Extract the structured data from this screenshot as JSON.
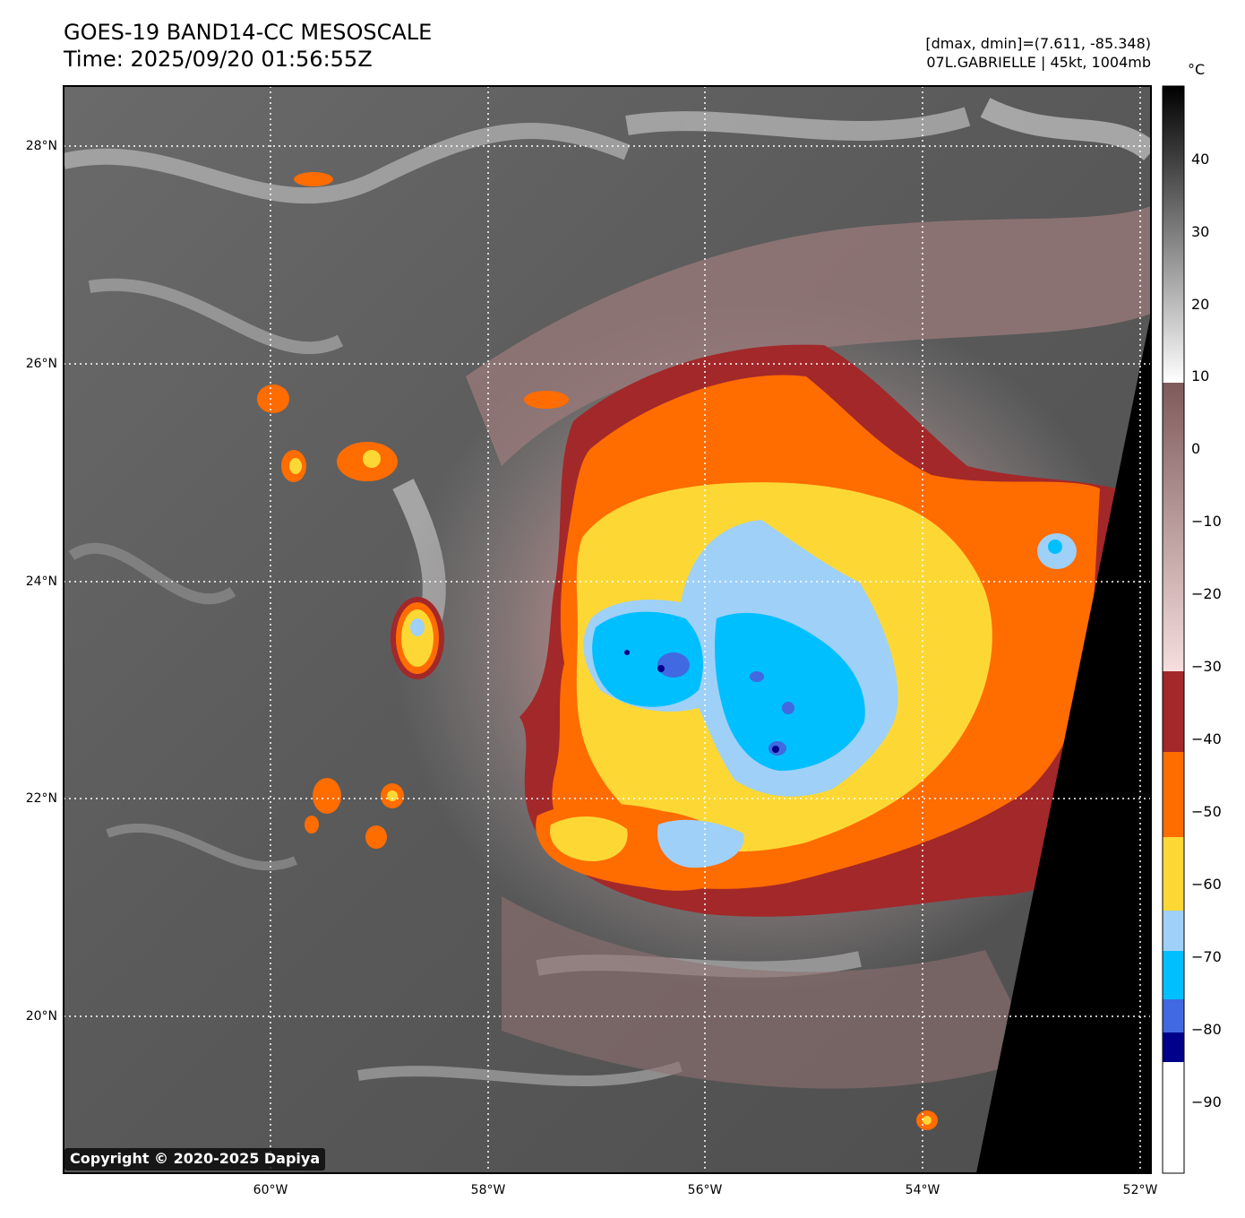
{
  "header": {
    "title_line1": "GOES-19 BAND14-CC MESOSCALE",
    "title_line2": "Time: 2025/09/20 01:56:55Z",
    "info_line1": "[dmax, dmin]=(7.611, -85.348)",
    "info_line2": "07L.GABRIELLE | 45kt, 1004mb"
  },
  "map": {
    "latitude_labels": [
      "28°N",
      "26°N",
      "24°N",
      "22°N",
      "20°N"
    ],
    "longitude_labels": [
      "60°W",
      "58°W",
      "56°W",
      "54°W",
      "52°W"
    ],
    "storm_name": "07L.GABRIELLE",
    "copyright": "Copyright © 2020-2025 Dapiya"
  },
  "colorbar": {
    "unit": "°C",
    "ticks": [
      "40",
      "30",
      "20",
      "10",
      "0",
      "−10",
      "−20",
      "−30",
      "−40",
      "−50",
      "−60",
      "−70",
      "−80",
      "−90"
    ],
    "range": [
      -100,
      50
    ],
    "colors": {
      "black": "#000000",
      "gray_gradient_top": "#000000",
      "gray_gradient_bottom": "#ffffff",
      "brown_top": "#7e5b5b",
      "brown_bottom": "#f6dede",
      "dark_red": "#a3282a",
      "orange": "#ff6c00",
      "yellow": "#fdd835",
      "light_blue": "#9fd0f8",
      "cyan": "#00bfff",
      "royal_blue": "#4169e1",
      "navy": "#00008b",
      "white": "#ffffff"
    }
  }
}
